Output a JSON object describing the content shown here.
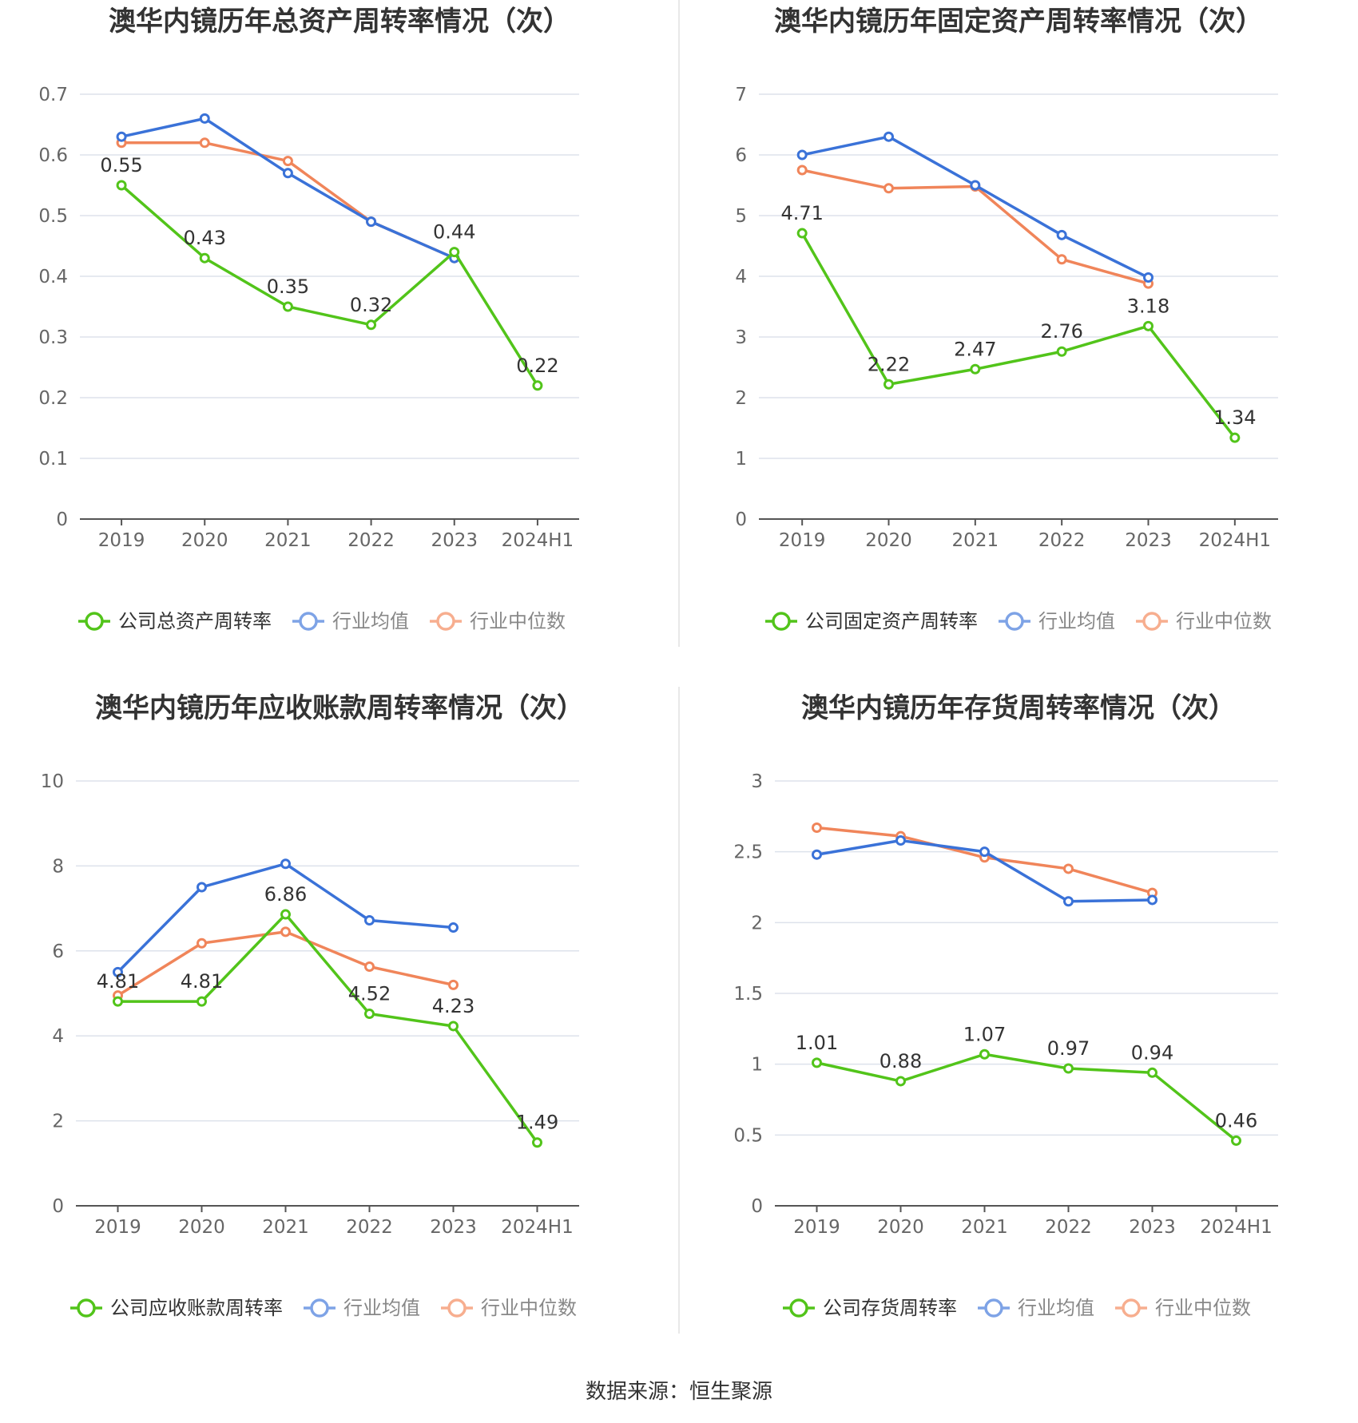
{
  "source_text": "数据来源：恒生聚源",
  "colors": {
    "company": "#52c41a",
    "industry_avg": "#3a72d8",
    "industry_median": "#f0855a",
    "grid": "#dde2eb",
    "axis": "#555555"
  },
  "chart_data": [
    {
      "type": "line",
      "title": "澳华内镜历年总资产周转率情况（次）",
      "categories": [
        "2019",
        "2020",
        "2021",
        "2022",
        "2023",
        "2024H1"
      ],
      "ylim": [
        0,
        0.7
      ],
      "yticks": [
        "0",
        "0.1",
        "0.2",
        "0.3",
        "0.4",
        "0.5",
        "0.6",
        "0.7"
      ],
      "grid": true,
      "legend": "bottom",
      "series": [
        {
          "name": "公司总资产周转率",
          "values": [
            0.55,
            0.43,
            0.35,
            0.32,
            0.44,
            0.22
          ],
          "labels": [
            "0.55",
            "0.43",
            "0.35",
            "0.32",
            "0.44",
            "0.22"
          ]
        },
        {
          "name": "行业均值",
          "values": [
            0.63,
            0.66,
            0.57,
            0.49,
            0.43,
            null
          ]
        },
        {
          "name": "行业中位数",
          "values": [
            0.62,
            0.62,
            0.59,
            0.49,
            0.43,
            null
          ]
        }
      ]
    },
    {
      "type": "line",
      "title": "澳华内镜历年固定资产周转率情况（次）",
      "categories": [
        "2019",
        "2020",
        "2021",
        "2022",
        "2023",
        "2024H1"
      ],
      "ylim": [
        0,
        7
      ],
      "yticks": [
        "0",
        "1",
        "2",
        "3",
        "4",
        "5",
        "6",
        "7"
      ],
      "grid": true,
      "legend": "bottom",
      "series": [
        {
          "name": "公司固定资产周转率",
          "values": [
            4.71,
            2.22,
            2.47,
            2.76,
            3.18,
            1.34
          ],
          "labels": [
            "4.71",
            "2.22",
            "2.47",
            "2.76",
            "3.18",
            "1.34"
          ]
        },
        {
          "name": "行业均值",
          "values": [
            6.0,
            6.3,
            5.5,
            4.68,
            3.98,
            null
          ]
        },
        {
          "name": "行业中位数",
          "values": [
            5.75,
            5.45,
            5.48,
            4.28,
            3.88,
            null
          ]
        }
      ]
    },
    {
      "type": "line",
      "title": "澳华内镜历年应收账款周转率情况（次）",
      "categories": [
        "2019",
        "2020",
        "2021",
        "2022",
        "2023",
        "2024H1"
      ],
      "ylim": [
        0,
        10
      ],
      "yticks": [
        "0",
        "2",
        "4",
        "6",
        "8",
        "10"
      ],
      "grid": true,
      "legend": "bottom",
      "series": [
        {
          "name": "公司应收账款周转率",
          "values": [
            4.81,
            4.81,
            6.86,
            4.52,
            4.23,
            1.49
          ],
          "labels": [
            "4.81",
            "4.81",
            "6.86",
            "4.52",
            "4.23",
            "1.49"
          ]
        },
        {
          "name": "行业均值",
          "values": [
            5.5,
            7.5,
            8.05,
            6.72,
            6.55,
            null
          ]
        },
        {
          "name": "行业中位数",
          "values": [
            4.95,
            6.18,
            6.45,
            5.63,
            5.2,
            null
          ]
        }
      ]
    },
    {
      "type": "line",
      "title": "澳华内镜历年存货周转率情况（次）",
      "categories": [
        "2019",
        "2020",
        "2021",
        "2022",
        "2023",
        "2024H1"
      ],
      "ylim": [
        0,
        3
      ],
      "yticks": [
        "0",
        "0.5",
        "1",
        "1.5",
        "2",
        "2.5",
        "3"
      ],
      "grid": true,
      "legend": "bottom",
      "series": [
        {
          "name": "公司存货周转率",
          "values": [
            1.01,
            0.88,
            1.07,
            0.97,
            0.94,
            0.46
          ],
          "labels": [
            "1.01",
            "0.88",
            "1.07",
            "0.97",
            "0.94",
            "0.46"
          ]
        },
        {
          "name": "行业均值",
          "values": [
            2.48,
            2.58,
            2.5,
            2.15,
            2.16,
            null
          ]
        },
        {
          "name": "行业中位数",
          "values": [
            2.67,
            2.61,
            2.46,
            2.38,
            2.21,
            null
          ]
        }
      ]
    }
  ]
}
